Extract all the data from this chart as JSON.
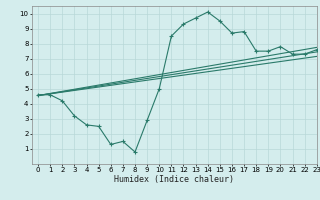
{
  "xlabel": "Humidex (Indice chaleur)",
  "bg_color": "#d4eded",
  "line_color": "#2a7a6a",
  "grid_color": "#b8d8d8",
  "xlim": [
    -0.5,
    23
  ],
  "ylim": [
    0,
    10.5
  ],
  "xticks": [
    0,
    1,
    2,
    3,
    4,
    5,
    6,
    7,
    8,
    9,
    10,
    11,
    12,
    13,
    14,
    15,
    16,
    17,
    18,
    19,
    20,
    21,
    22,
    23
  ],
  "yticks": [
    1,
    2,
    3,
    4,
    5,
    6,
    7,
    8,
    9,
    10
  ],
  "line1_x": [
    0,
    1,
    2,
    3,
    4,
    5,
    6,
    7,
    8,
    9,
    10,
    11,
    12,
    13,
    14,
    15,
    16,
    17,
    18,
    19,
    20,
    21,
    22,
    23
  ],
  "line1_y": [
    4.6,
    4.6,
    4.2,
    3.2,
    2.6,
    2.5,
    1.3,
    1.5,
    0.8,
    2.9,
    5.0,
    8.5,
    9.3,
    9.7,
    10.1,
    9.5,
    8.7,
    8.8,
    7.5,
    7.5,
    7.8,
    7.3,
    7.3,
    7.6
  ],
  "line2_x": [
    0,
    23
  ],
  "line2_y": [
    4.55,
    7.75
  ],
  "line3_x": [
    0,
    23
  ],
  "line3_y": [
    4.55,
    7.45
  ],
  "line4_x": [
    0,
    23
  ],
  "line4_y": [
    4.55,
    7.15
  ]
}
